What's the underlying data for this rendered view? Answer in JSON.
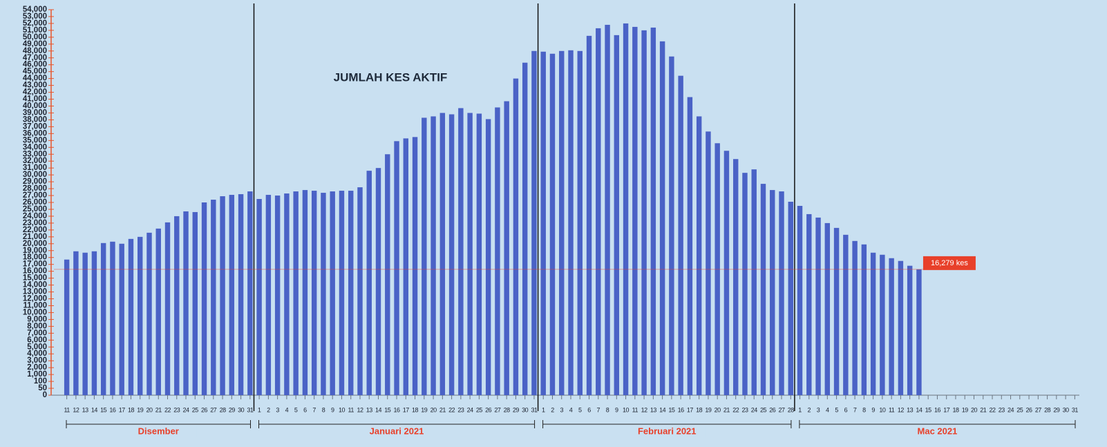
{
  "chart_data": {
    "type": "bar",
    "title": "JUMLAH KES AKTIF",
    "categories": [
      "11",
      "12",
      "13",
      "14",
      "15",
      "16",
      "17",
      "18",
      "19",
      "20",
      "21",
      "22",
      "23",
      "24",
      "25",
      "26",
      "27",
      "28",
      "29",
      "30",
      "31",
      "1",
      "2",
      "3",
      "4",
      "5",
      "6",
      "7",
      "8",
      "9",
      "10",
      "11",
      "12",
      "13",
      "14",
      "15",
      "16",
      "17",
      "18",
      "19",
      "20",
      "21",
      "22",
      "23",
      "24",
      "25",
      "26",
      "27",
      "28",
      "29",
      "30",
      "31",
      "1",
      "2",
      "3",
      "4",
      "5",
      "6",
      "7",
      "8",
      "9",
      "10",
      "11",
      "12",
      "13",
      "14",
      "15",
      "16",
      "17",
      "18",
      "19",
      "20",
      "21",
      "22",
      "23",
      "24",
      "25",
      "26",
      "27",
      "28",
      "1",
      "2",
      "3",
      "4",
      "5",
      "6",
      "7",
      "8",
      "9",
      "10",
      "11",
      "12",
      "13",
      "14",
      "15",
      "16",
      "17",
      "18",
      "19",
      "20",
      "21",
      "22",
      "23",
      "24",
      "25",
      "26",
      "27",
      "28",
      "29",
      "30",
      "31"
    ],
    "months": [
      "Disember",
      "Januari 2021",
      "Februari 2021",
      "Mac 2021"
    ],
    "values": [
      17700,
      18900,
      18700,
      18900,
      20100,
      20300,
      20000,
      20700,
      21000,
      21600,
      22200,
      23100,
      24000,
      24700,
      24600,
      26000,
      26400,
      26900,
      27100,
      27200,
      27600,
      26500,
      27100,
      27000,
      27300,
      27600,
      27800,
      27700,
      27400,
      27600,
      27700,
      27700,
      28200,
      30600,
      31000,
      33000,
      34900,
      35300,
      35500,
      38300,
      38500,
      39000,
      38800,
      39700,
      39000,
      38900,
      38100,
      39800,
      40700,
      44000,
      46300,
      48000,
      47900,
      47600,
      48000,
      48100,
      48000,
      50200,
      51300,
      51800,
      50300,
      52000,
      51500,
      51000,
      51400,
      49400,
      47200,
      44400,
      41300,
      38500,
      36300,
      34600,
      33500,
      32300,
      30300,
      30800,
      28700,
      27800,
      27600,
      26100,
      25500,
      24300,
      23800,
      23000,
      22300,
      21300,
      20400,
      19900,
      18700,
      18400,
      17900,
      17500,
      16800,
      16279,
      null,
      null,
      null,
      null,
      null,
      null,
      null,
      null,
      null,
      null,
      null,
      null,
      null,
      null,
      null,
      null,
      null
    ],
    "value_labels": [
      null,
      null,
      null,
      null,
      null,
      null,
      null,
      null,
      null,
      null,
      null,
      null,
      null,
      null,
      null,
      null,
      null,
      null,
      null,
      null,
      null,
      null,
      null,
      null,
      null,
      null,
      null,
      null,
      null,
      null,
      null,
      null,
      null,
      null,
      null,
      null,
      null,
      null,
      null,
      null,
      null,
      null,
      null,
      null,
      null,
      null,
      null,
      null,
      null,
      null,
      null,
      null,
      null,
      null,
      null,
      null,
      null,
      null,
      null,
      null,
      null,
      null,
      null,
      null,
      null,
      null,
      null,
      null,
      null,
      null,
      null,
      null,
      null,
      null,
      null,
      null,
      null,
      null,
      null,
      null,
      null,
      null,
      null,
      null,
      null,
      null,
      null,
      null,
      null,
      null,
      null,
      null,
      null,
      "16,279 kes",
      null,
      null,
      null,
      null,
      null,
      null,
      null,
      null,
      null,
      null,
      null,
      null,
      null,
      null,
      null,
      null,
      null
    ],
    "color": "#4a62c6",
    "ylim": [
      0,
      54000
    ],
    "yticks": [
      0,
      50,
      100,
      {
        "value": 1000,
        "label": "1,000"
      },
      {
        "value": 2000,
        "label": "2,000"
      },
      {
        "value": 3000,
        "label": "3,000"
      },
      {
        "value": 4000,
        "label": "4,000"
      },
      {
        "value": 5000,
        "label": "5,000"
      },
      {
        "value": 6000,
        "label": "6,000"
      },
      {
        "value": 7000,
        "label": "7,000"
      },
      {
        "value": 8000,
        "label": "8,000"
      },
      {
        "value": 9000,
        "label": "9,000"
      },
      {
        "value": 10000,
        "label": "10,000"
      },
      {
        "value": 11000,
        "label": "11,000"
      },
      {
        "value": 12000,
        "label": "12,000"
      },
      {
        "value": 13000,
        "label": "13,000"
      },
      {
        "value": 14000,
        "label": "14,000"
      },
      {
        "value": 15000,
        "label": "15,000"
      },
      {
        "value": 16000,
        "label": "16,000"
      },
      {
        "value": 17000,
        "label": "17,000"
      },
      {
        "value": 18000,
        "label": "18,000"
      },
      {
        "value": 19000,
        "label": "19,000"
      },
      {
        "value": 20000,
        "label": "20,000"
      },
      {
        "value": 21000,
        "label": "21,000"
      },
      {
        "value": 22000,
        "label": "22,000"
      },
      {
        "value": 23000,
        "label": "23,000"
      },
      {
        "value": 24000,
        "label": "24,000"
      },
      {
        "value": 25000,
        "label": "25,000"
      },
      {
        "value": 26000,
        "label": "26,000"
      },
      {
        "value": 27000,
        "label": "27,000"
      },
      {
        "value": 28000,
        "label": "28,000"
      },
      {
        "value": 29000,
        "label": "29,000"
      },
      {
        "value": 30000,
        "label": "30,000"
      },
      {
        "value": 31000,
        "label": "31,000"
      },
      {
        "value": 32000,
        "label": "32,000"
      },
      {
        "value": 33000,
        "label": "33,000"
      },
      {
        "value": 34000,
        "label": "34,000"
      },
      {
        "value": 35000,
        "label": "35,000"
      },
      {
        "value": 36000,
        "label": "36,000"
      },
      {
        "value": 37000,
        "label": "37,000"
      },
      {
        "value": 38000,
        "label": "38,000"
      },
      {
        "value": 39000,
        "label": "39,000"
      },
      {
        "value": 40000,
        "label": "40,000"
      },
      {
        "value": 41000,
        "label": "41,000"
      },
      {
        "value": 42000,
        "label": "42,000"
      },
      {
        "value": 43000,
        "label": "43,000"
      },
      {
        "value": 44000,
        "label": "44,000"
      },
      {
        "value": 45000,
        "label": "45,000"
      },
      {
        "value": 46000,
        "label": "46,000"
      },
      {
        "value": 47000,
        "label": "47,000"
      },
      {
        "value": 48000,
        "label": "48,000"
      },
      {
        "value": 49000,
        "label": "49,000"
      },
      {
        "value": 50000,
        "label": "50,000"
      },
      {
        "value": 51000,
        "label": "51,000"
      },
      {
        "value": 52000,
        "label": "52,000"
      },
      {
        "value": 53000,
        "label": "53,000"
      },
      {
        "value": 54000,
        "label": "54,000"
      }
    ],
    "grid": false
  }
}
